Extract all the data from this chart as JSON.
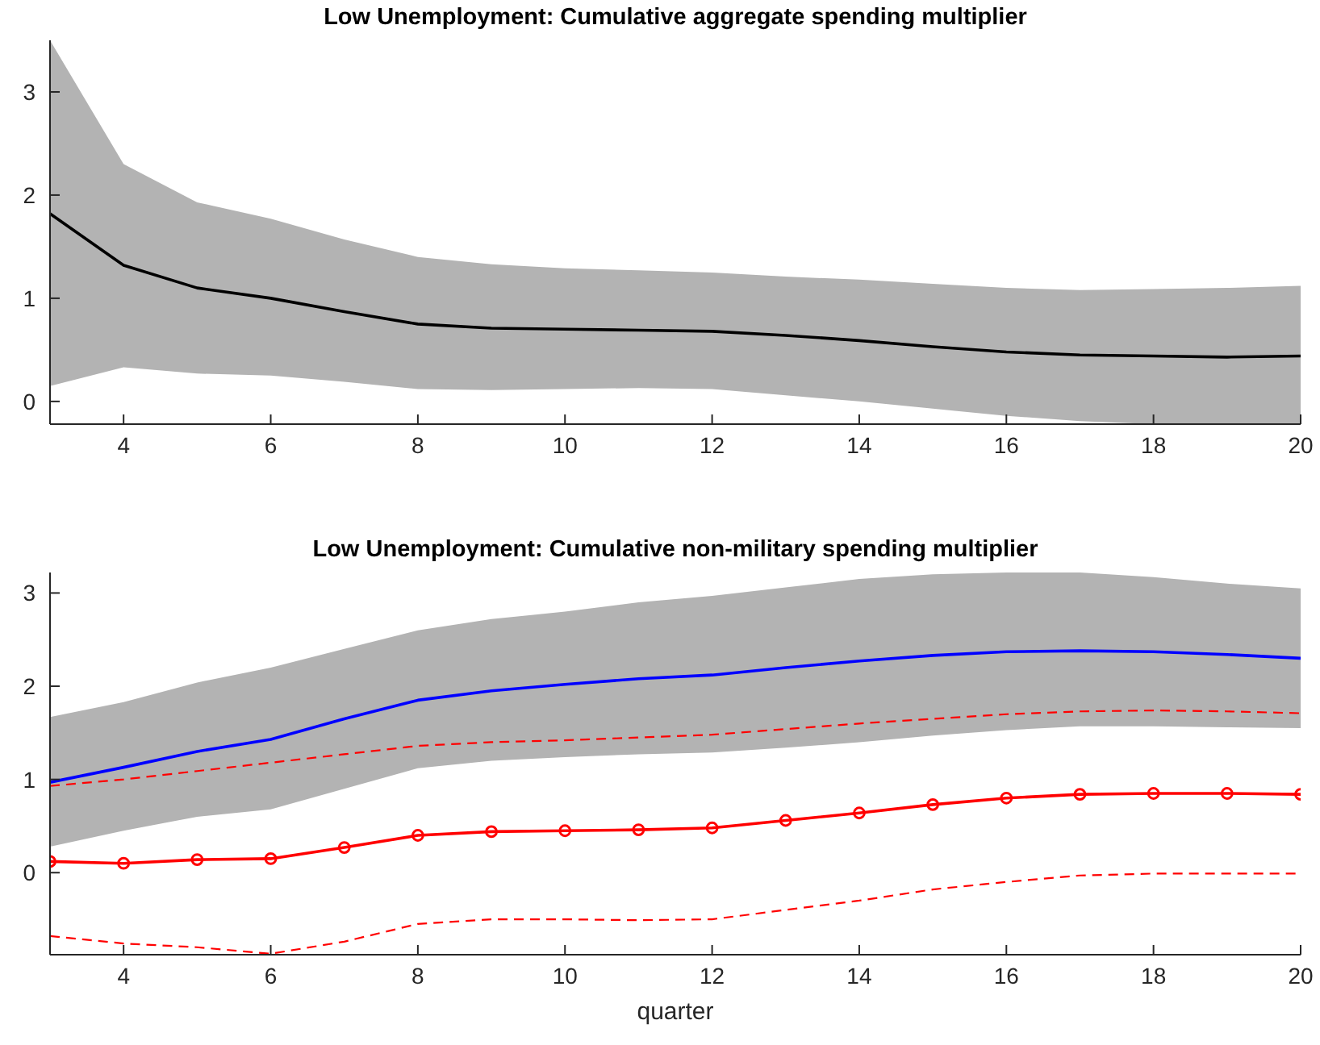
{
  "chart_data": [
    {
      "type": "line",
      "title": "Low Unemployment: Cumulative aggregate spending multiplier",
      "x": [
        3,
        4,
        5,
        6,
        7,
        8,
        9,
        10,
        11,
        12,
        13,
        14,
        15,
        16,
        17,
        18,
        19,
        20
      ],
      "xlim": [
        3,
        20
      ],
      "xticks": [
        4,
        6,
        8,
        10,
        12,
        14,
        16,
        18,
        20
      ],
      "ylim": [
        -0.22,
        3.5
      ],
      "yticks": [
        0,
        1,
        2,
        3
      ],
      "grid": false,
      "series": [
        {
          "color": "#000000",
          "line_style": "solid",
          "marker": "none",
          "values": [
            1.82,
            1.32,
            1.1,
            1.0,
            0.87,
            0.75,
            0.71,
            0.7,
            0.69,
            0.68,
            0.64,
            0.59,
            0.53,
            0.48,
            0.45,
            0.44,
            0.43,
            0.44
          ],
          "upper": [
            3.5,
            2.3,
            1.93,
            1.77,
            1.57,
            1.4,
            1.33,
            1.29,
            1.27,
            1.25,
            1.21,
            1.18,
            1.14,
            1.1,
            1.08,
            1.09,
            1.1,
            1.12
          ],
          "lower": [
            0.15,
            0.33,
            0.27,
            0.25,
            0.19,
            0.12,
            0.11,
            0.12,
            0.13,
            0.12,
            0.06,
            0.0,
            -0.07,
            -0.14,
            -0.19,
            -0.22,
            -0.22,
            -0.22
          ]
        }
      ]
    },
    {
      "type": "line",
      "title": "Low Unemployment: Cumulative non-military spending multiplier",
      "xlabel": "quarter",
      "x": [
        3,
        4,
        5,
        6,
        7,
        8,
        9,
        10,
        11,
        12,
        13,
        14,
        15,
        16,
        17,
        18,
        19,
        20
      ],
      "xlim": [
        3,
        20
      ],
      "xticks": [
        4,
        6,
        8,
        10,
        12,
        14,
        16,
        18,
        20
      ],
      "ylim": [
        -0.88,
        3.22
      ],
      "yticks": [
        0,
        1,
        2,
        3
      ],
      "grid": false,
      "series": [
        {
          "color": "#0000ff",
          "line_style": "solid",
          "marker": "none",
          "values": [
            0.97,
            1.13,
            1.3,
            1.43,
            1.65,
            1.85,
            1.95,
            2.02,
            2.08,
            2.12,
            2.2,
            2.27,
            2.33,
            2.37,
            2.38,
            2.37,
            2.34,
            2.3
          ],
          "upper": [
            1.67,
            1.83,
            2.04,
            2.2,
            2.4,
            2.6,
            2.72,
            2.8,
            2.9,
            2.97,
            3.06,
            3.15,
            3.2,
            3.22,
            3.22,
            3.17,
            3.1,
            3.05
          ],
          "lower": [
            0.28,
            0.45,
            0.6,
            0.68,
            0.9,
            1.12,
            1.2,
            1.24,
            1.27,
            1.29,
            1.34,
            1.4,
            1.47,
            1.53,
            1.57,
            1.57,
            1.56,
            1.55
          ]
        },
        {
          "color": "#ff0000",
          "line_style": "dashed",
          "marker": "none",
          "values": [
            0.93,
            1.0,
            1.09,
            1.18,
            1.27,
            1.36,
            1.4,
            1.42,
            1.45,
            1.48,
            1.54,
            1.6,
            1.65,
            1.7,
            1.73,
            1.74,
            1.73,
            1.71
          ]
        },
        {
          "color": "#ff0000",
          "line_style": "solid",
          "marker": "circle",
          "values": [
            0.12,
            0.1,
            0.14,
            0.15,
            0.27,
            0.4,
            0.44,
            0.45,
            0.46,
            0.48,
            0.56,
            0.64,
            0.73,
            0.8,
            0.84,
            0.85,
            0.85,
            0.84
          ]
        },
        {
          "color": "#ff0000",
          "line_style": "dashed",
          "marker": "none",
          "values": [
            -0.68,
            -0.76,
            -0.8,
            -0.87,
            -0.74,
            -0.55,
            -0.5,
            -0.5,
            -0.51,
            -0.5,
            -0.4,
            -0.3,
            -0.18,
            -0.1,
            -0.03,
            -0.01,
            -0.01,
            -0.01
          ]
        }
      ]
    }
  ]
}
